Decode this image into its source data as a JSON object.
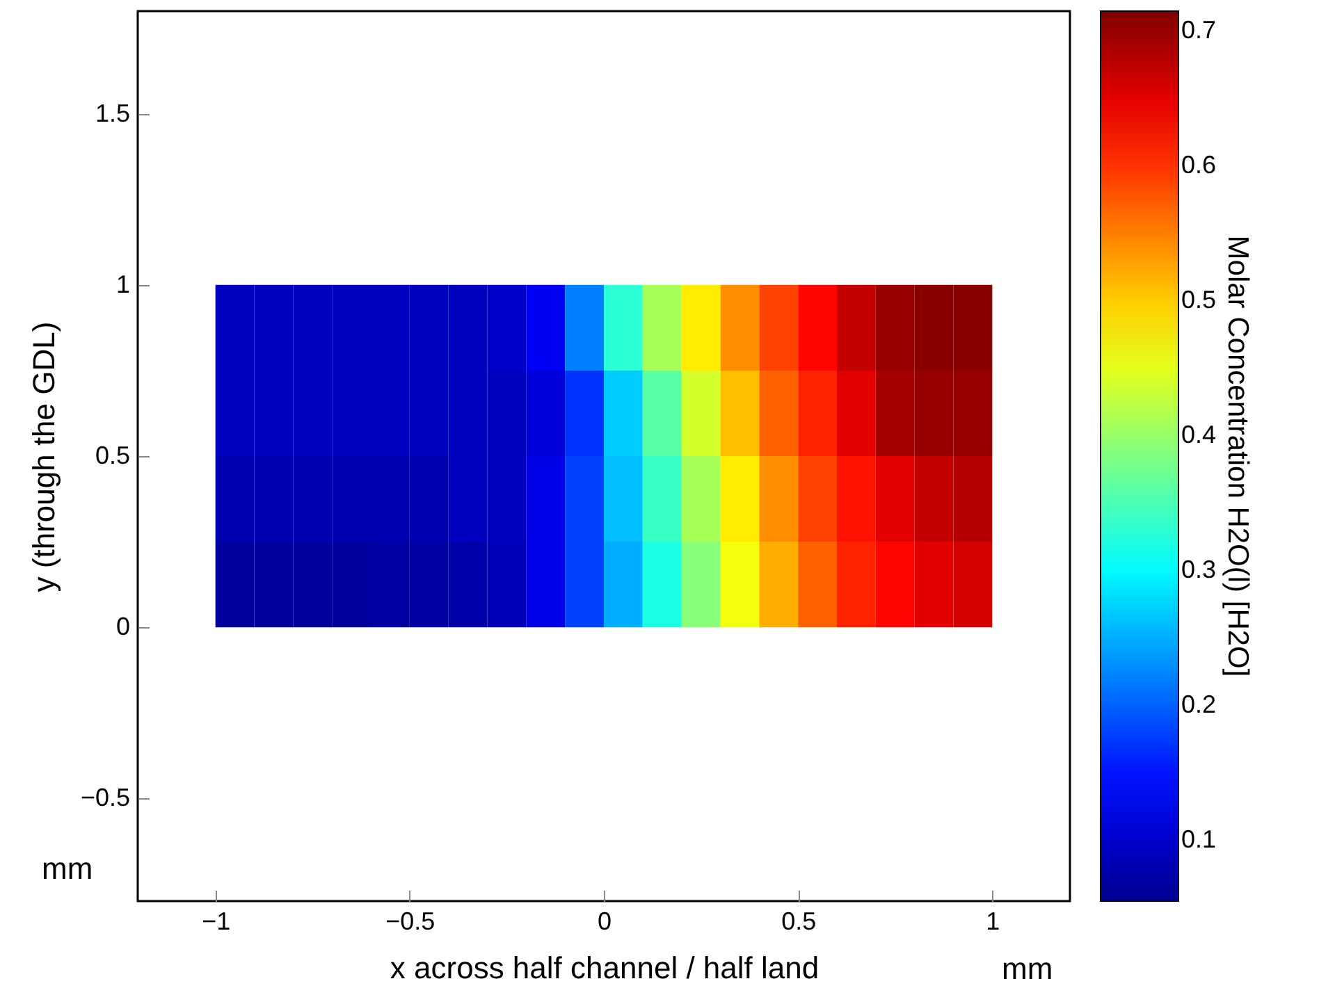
{
  "chart_data": {
    "type": "heatmap",
    "xlabel": "x across half channel / half land",
    "ylabel": "y (through the GDL)",
    "clabel": "Molar Concentration H2O(l) [H2O]",
    "annotations": [
      "mm",
      "mm"
    ],
    "x": [
      -0.95,
      -0.85,
      -0.75,
      -0.65,
      -0.55,
      -0.45,
      -0.35,
      -0.25,
      -0.15,
      -0.05,
      0.05,
      0.15,
      0.25,
      0.35,
      0.45,
      0.55,
      0.65,
      0.75,
      0.85,
      0.95
    ],
    "y": [
      0.875,
      0.625,
      0.375,
      0.125
    ],
    "cells": [
      [
        0.09,
        0.09,
        0.09,
        0.09,
        0.09,
        0.09,
        0.09,
        0.1,
        0.13,
        0.22,
        0.33,
        0.41,
        0.48,
        0.54,
        0.59,
        0.63,
        0.67,
        0.7,
        0.71,
        0.71
      ],
      [
        0.09,
        0.09,
        0.09,
        0.09,
        0.09,
        0.09,
        0.09,
        0.09,
        0.11,
        0.17,
        0.27,
        0.36,
        0.44,
        0.51,
        0.57,
        0.61,
        0.65,
        0.69,
        0.7,
        0.7
      ],
      [
        0.08,
        0.08,
        0.08,
        0.08,
        0.08,
        0.08,
        0.09,
        0.09,
        0.12,
        0.18,
        0.26,
        0.34,
        0.41,
        0.48,
        0.54,
        0.59,
        0.62,
        0.65,
        0.67,
        0.68
      ],
      [
        0.065,
        0.065,
        0.065,
        0.065,
        0.07,
        0.07,
        0.075,
        0.085,
        0.12,
        0.18,
        0.25,
        0.32,
        0.39,
        0.46,
        0.52,
        0.57,
        0.61,
        0.63,
        0.65,
        0.66
      ]
    ],
    "xlim": [
      -1.2,
      1.2
    ],
    "xticks": [
      -1,
      -0.5,
      0,
      0.5,
      1
    ],
    "ylim": [
      -0.8,
      1.8
    ],
    "yticks": [
      -0.5,
      0,
      0.5,
      1,
      1.5
    ],
    "clim": [
      0.055,
      0.715
    ],
    "cticks": [
      0.1,
      0.2,
      0.3,
      0.4,
      0.5,
      0.6,
      0.7
    ],
    "grid": false
  }
}
